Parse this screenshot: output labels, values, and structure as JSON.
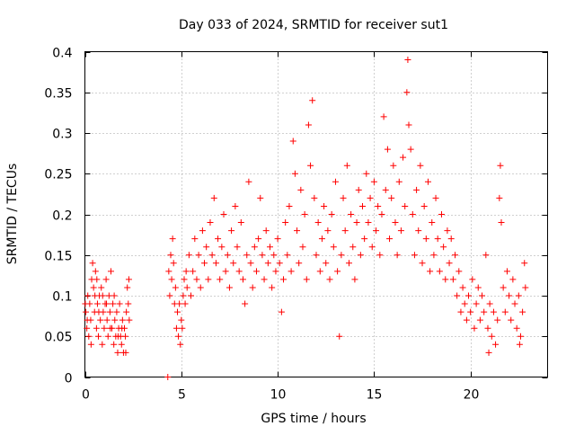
{
  "chart_data": {
    "type": "scatter",
    "title": "Day 033 of 2024, SRMTID for receiver sut1",
    "xlabel": "GPS time / hours",
    "ylabel": "SRMTID / TECUs",
    "xlim": [
      0,
      24
    ],
    "ylim": [
      0,
      0.4
    ],
    "x_ticks": [
      0,
      5,
      10,
      15,
      20
    ],
    "x_tick_labels": [
      "0",
      "5",
      "10",
      "15",
      "20"
    ],
    "y_ticks": [
      0,
      0.05,
      0.1,
      0.15,
      0.2,
      0.25,
      0.3,
      0.35,
      0.4
    ],
    "y_tick_labels": [
      "0",
      "0.05",
      "0.1",
      "0.15",
      "0.2",
      "0.25",
      "0.3",
      "0.35",
      "0.4"
    ],
    "grid": true,
    "marker": "plus",
    "color": "#ff0000",
    "series": [
      {
        "name": "SRMTID",
        "points": [
          [
            0.05,
            0.08
          ],
          [
            0.1,
            0.06
          ],
          [
            0.15,
            0.1
          ],
          [
            0.2,
            0.05
          ],
          [
            0.25,
            0.09
          ],
          [
            0.3,
            0.07
          ],
          [
            0.35,
            0.12
          ],
          [
            0.4,
            0.14
          ],
          [
            0.45,
            0.11
          ],
          [
            0.5,
            0.08
          ],
          [
            0.55,
            0.13
          ],
          [
            0.6,
            0.06
          ],
          [
            0.65,
            0.09
          ],
          [
            0.7,
            0.05
          ],
          [
            0.75,
            0.1
          ],
          [
            0.8,
            0.07
          ],
          [
            0.85,
            0.11
          ],
          [
            0.9,
            0.04
          ],
          [
            0.95,
            0.08
          ],
          [
            1.0,
            0.06
          ],
          [
            1.05,
            0.09
          ],
          [
            1.1,
            0.12
          ],
          [
            1.15,
            0.07
          ],
          [
            1.2,
            0.05
          ],
          [
            1.25,
            0.1
          ],
          [
            1.3,
            0.08
          ],
          [
            1.35,
            0.13
          ],
          [
            1.4,
            0.06
          ],
          [
            1.45,
            0.09
          ],
          [
            1.5,
            0.04
          ],
          [
            1.55,
            0.07
          ],
          [
            1.6,
            0.05
          ],
          [
            1.65,
            0.08
          ],
          [
            1.7,
            0.03
          ],
          [
            1.75,
            0.06
          ],
          [
            1.8,
            0.09
          ],
          [
            1.85,
            0.05
          ],
          [
            1.9,
            0.04
          ],
          [
            1.95,
            0.07
          ],
          [
            2.0,
            0.03
          ],
          [
            2.05,
            0.06
          ],
          [
            2.1,
            0.05
          ],
          [
            2.15,
            0.08
          ],
          [
            2.2,
            0.11
          ],
          [
            2.25,
            0.09
          ],
          [
            2.3,
            0.07
          ],
          [
            0.02,
            0.09
          ],
          [
            0.12,
            0.07
          ],
          [
            0.32,
            0.04
          ],
          [
            0.52,
            0.1
          ],
          [
            0.72,
            0.08
          ],
          [
            0.92,
            0.1
          ],
          [
            1.12,
            0.09
          ],
          [
            1.32,
            0.06
          ],
          [
            1.52,
            0.1
          ],
          [
            1.72,
            0.05
          ],
          [
            1.92,
            0.06
          ],
          [
            2.12,
            0.03
          ],
          [
            2.28,
            0.12
          ],
          [
            0.62,
            0.12
          ],
          [
            4.35,
            0.13
          ],
          [
            4.4,
            0.1
          ],
          [
            4.45,
            0.15
          ],
          [
            4.5,
            0.12
          ],
          [
            4.55,
            0.17
          ],
          [
            4.6,
            0.14
          ],
          [
            4.65,
            0.09
          ],
          [
            4.7,
            0.11
          ],
          [
            4.75,
            0.06
          ],
          [
            4.8,
            0.08
          ],
          [
            4.85,
            0.05
          ],
          [
            4.9,
            0.09
          ],
          [
            4.95,
            0.04
          ],
          [
            5.0,
            0.07
          ],
          [
            5.05,
            0.06
          ],
          [
            5.1,
            0.1
          ],
          [
            5.15,
            0.12
          ],
          [
            5.2,
            0.09
          ],
          [
            5.25,
            0.13
          ],
          [
            5.3,
            0.11
          ],
          [
            5.4,
            0.15
          ],
          [
            5.5,
            0.1
          ],
          [
            5.6,
            0.13
          ],
          [
            5.7,
            0.17
          ],
          [
            5.8,
            0.12
          ],
          [
            5.9,
            0.15
          ],
          [
            6.0,
            0.11
          ],
          [
            6.1,
            0.18
          ],
          [
            6.2,
            0.14
          ],
          [
            6.3,
            0.16
          ],
          [
            6.4,
            0.12
          ],
          [
            6.5,
            0.19
          ],
          [
            6.6,
            0.15
          ],
          [
            6.7,
            0.22
          ],
          [
            6.8,
            0.14
          ],
          [
            6.9,
            0.17
          ],
          [
            7.0,
            0.12
          ],
          [
            7.1,
            0.16
          ],
          [
            7.2,
            0.2
          ],
          [
            7.3,
            0.13
          ],
          [
            7.4,
            0.15
          ],
          [
            7.5,
            0.11
          ],
          [
            7.6,
            0.18
          ],
          [
            7.7,
            0.14
          ],
          [
            7.8,
            0.21
          ],
          [
            7.9,
            0.16
          ],
          [
            8.0,
            0.13
          ],
          [
            8.1,
            0.19
          ],
          [
            8.2,
            0.12
          ],
          [
            8.3,
            0.09
          ],
          [
            8.4,
            0.15
          ],
          [
            8.5,
            0.24
          ],
          [
            8.6,
            0.14
          ],
          [
            8.7,
            0.11
          ],
          [
            8.8,
            0.16
          ],
          [
            8.9,
            0.13
          ],
          [
            9.0,
            0.17
          ],
          [
            9.1,
            0.22
          ],
          [
            9.2,
            0.15
          ],
          [
            9.3,
            0.12
          ],
          [
            9.4,
            0.18
          ],
          [
            9.5,
            0.14
          ],
          [
            9.6,
            0.16
          ],
          [
            9.7,
            0.11
          ],
          [
            9.8,
            0.15
          ],
          [
            9.9,
            0.13
          ],
          [
            10.0,
            0.17
          ],
          [
            10.1,
            0.14
          ],
          [
            10.2,
            0.08
          ],
          [
            10.3,
            0.12
          ],
          [
            10.4,
            0.19
          ],
          [
            10.5,
            0.15
          ],
          [
            10.6,
            0.21
          ],
          [
            10.7,
            0.13
          ],
          [
            10.8,
            0.29
          ],
          [
            10.9,
            0.25
          ],
          [
            11.0,
            0.18
          ],
          [
            11.1,
            0.14
          ],
          [
            11.2,
            0.23
          ],
          [
            11.3,
            0.16
          ],
          [
            11.4,
            0.2
          ],
          [
            11.5,
            0.12
          ],
          [
            11.6,
            0.31
          ],
          [
            11.7,
            0.26
          ],
          [
            11.8,
            0.34
          ],
          [
            11.9,
            0.22
          ],
          [
            12.0,
            0.15
          ],
          [
            12.1,
            0.19
          ],
          [
            12.2,
            0.13
          ],
          [
            12.3,
            0.17
          ],
          [
            12.4,
            0.21
          ],
          [
            12.5,
            0.14
          ],
          [
            12.6,
            0.18
          ],
          [
            12.7,
            0.12
          ],
          [
            12.8,
            0.2
          ],
          [
            12.9,
            0.16
          ],
          [
            13.0,
            0.24
          ],
          [
            13.1,
            0.13
          ],
          [
            13.2,
            0.05
          ],
          [
            13.3,
            0.15
          ],
          [
            13.4,
            0.22
          ],
          [
            13.5,
            0.18
          ],
          [
            13.6,
            0.26
          ],
          [
            13.7,
            0.14
          ],
          [
            13.8,
            0.2
          ],
          [
            13.9,
            0.16
          ],
          [
            14.0,
            0.12
          ],
          [
            14.1,
            0.19
          ],
          [
            14.2,
            0.23
          ],
          [
            14.3,
            0.15
          ],
          [
            14.4,
            0.21
          ],
          [
            14.5,
            0.17
          ],
          [
            14.6,
            0.25
          ],
          [
            14.7,
            0.19
          ],
          [
            14.8,
            0.22
          ],
          [
            14.9,
            0.16
          ],
          [
            15.0,
            0.24
          ],
          [
            15.1,
            0.18
          ],
          [
            15.2,
            0.21
          ],
          [
            15.3,
            0.15
          ],
          [
            15.4,
            0.2
          ],
          [
            15.5,
            0.32
          ],
          [
            15.6,
            0.23
          ],
          [
            15.7,
            0.28
          ],
          [
            15.8,
            0.17
          ],
          [
            15.9,
            0.22
          ],
          [
            16.0,
            0.26
          ],
          [
            16.1,
            0.19
          ],
          [
            16.2,
            0.15
          ],
          [
            16.3,
            0.24
          ],
          [
            16.4,
            0.18
          ],
          [
            16.5,
            0.27
          ],
          [
            16.6,
            0.21
          ],
          [
            16.7,
            0.35
          ],
          [
            16.75,
            0.39
          ],
          [
            16.8,
            0.31
          ],
          [
            16.9,
            0.28
          ],
          [
            17.0,
            0.2
          ],
          [
            17.1,
            0.15
          ],
          [
            17.2,
            0.23
          ],
          [
            17.3,
            0.18
          ],
          [
            17.4,
            0.26
          ],
          [
            17.5,
            0.14
          ],
          [
            17.6,
            0.21
          ],
          [
            17.7,
            0.17
          ],
          [
            17.8,
            0.24
          ],
          [
            17.9,
            0.13
          ],
          [
            18.0,
            0.19
          ],
          [
            18.1,
            0.15
          ],
          [
            18.2,
            0.22
          ],
          [
            18.3,
            0.17
          ],
          [
            18.4,
            0.13
          ],
          [
            18.5,
            0.2
          ],
          [
            18.6,
            0.16
          ],
          [
            18.7,
            0.12
          ],
          [
            18.8,
            0.18
          ],
          [
            18.9,
            0.14
          ],
          [
            19.0,
            0.17
          ],
          [
            19.1,
            0.12
          ],
          [
            19.2,
            0.15
          ],
          [
            19.3,
            0.1
          ],
          [
            19.4,
            0.13
          ],
          [
            19.5,
            0.08
          ],
          [
            19.6,
            0.11
          ],
          [
            19.7,
            0.09
          ],
          [
            19.8,
            0.07
          ],
          [
            19.9,
            0.1
          ],
          [
            20.0,
            0.08
          ],
          [
            20.1,
            0.12
          ],
          [
            20.2,
            0.06
          ],
          [
            20.3,
            0.09
          ],
          [
            20.4,
            0.11
          ],
          [
            20.5,
            0.07
          ],
          [
            20.6,
            0.1
          ],
          [
            20.7,
            0.08
          ],
          [
            20.8,
            0.15
          ],
          [
            20.9,
            0.06
          ],
          [
            21.0,
            0.09
          ],
          [
            21.1,
            0.05
          ],
          [
            21.2,
            0.08
          ],
          [
            21.3,
            0.04
          ],
          [
            21.4,
            0.07
          ],
          [
            21.5,
            0.22
          ],
          [
            21.55,
            0.26
          ],
          [
            21.6,
            0.19
          ],
          [
            21.7,
            0.11
          ],
          [
            21.8,
            0.08
          ],
          [
            21.9,
            0.13
          ],
          [
            22.0,
            0.1
          ],
          [
            22.1,
            0.07
          ],
          [
            22.2,
            0.12
          ],
          [
            22.3,
            0.09
          ],
          [
            22.4,
            0.06
          ],
          [
            22.5,
            0.1
          ],
          [
            22.6,
            0.05
          ],
          [
            22.7,
            0.08
          ],
          [
            22.8,
            0.14
          ],
          [
            22.85,
            0.11
          ],
          [
            20.95,
            0.03
          ],
          [
            22.55,
            0.04
          ],
          [
            4.3,
            0.0
          ]
        ]
      }
    ]
  }
}
